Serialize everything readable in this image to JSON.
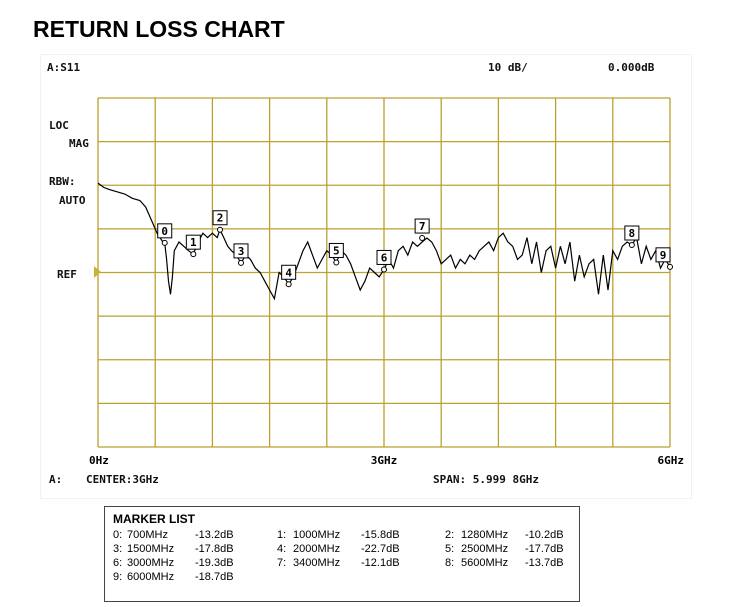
{
  "title": "RETURN LOSS CHART",
  "screen": {
    "trace_label": "A:S11",
    "scale": "10 dB/",
    "ref_value": "0.000dB",
    "format_line1": "LOC",
    "format_line2": "MAG",
    "rbw_line1": "RBW:",
    "rbw_line2": "AUTO",
    "ref_label": "REF",
    "channel_label": "A:",
    "center": "CENTER:3GHz",
    "span": "SPAN: 5.999 8GHz"
  },
  "colors": {
    "grid": "#b9a230",
    "trace": "#000000",
    "ref_arrow": "#c9b338"
  },
  "chart_data": {
    "type": "line",
    "title": "RETURN LOSS CHART",
    "xlabel": "",
    "ylabel": "",
    "x_unit": "MHz",
    "y_unit": "dB",
    "xlim": [
      0,
      6000
    ],
    "ylim": [
      -60,
      20
    ],
    "x_ticks": [
      0,
      3000,
      6000
    ],
    "x_tick_labels": [
      "0Hz",
      "3GHz",
      "6GHz"
    ],
    "grid": true,
    "grid_divisions": {
      "x": 10,
      "y": 8
    },
    "series": [
      {
        "x": [
          0,
          60,
          120,
          200,
          280,
          360,
          440,
          500,
          540,
          580,
          620,
          650,
          680,
          700,
          720,
          740,
          760,
          780,
          800,
          850,
          900,
          950,
          1000,
          1050,
          1100,
          1150,
          1200,
          1250,
          1280,
          1320,
          1360,
          1400,
          1450,
          1500,
          1550,
          1600,
          1650,
          1700,
          1750,
          1800,
          1850,
          1900,
          1950,
          2000,
          2050,
          2100,
          2150,
          2200,
          2250,
          2300,
          2350,
          2400,
          2450,
          2500,
          2550,
          2600,
          2650,
          2700,
          2750,
          2800,
          2850,
          2900,
          2950,
          3000,
          3050,
          3100,
          3150,
          3200,
          3250,
          3300,
          3350,
          3400,
          3450,
          3500,
          3550,
          3600,
          3650,
          3700,
          3750,
          3800,
          3850,
          3900,
          3950,
          4000,
          4050,
          4100,
          4150,
          4200,
          4250,
          4300,
          4350,
          4400,
          4450,
          4500,
          4550,
          4600,
          4650,
          4700,
          4750,
          4800,
          4850,
          4900,
          4950,
          5000,
          5050,
          5100,
          5150,
          5200,
          5250,
          5300,
          5350,
          5400,
          5450,
          5500,
          5550,
          5600,
          5650,
          5700,
          5750,
          5800,
          5850,
          5900,
          5950,
          6000
        ],
        "y": [
          0.5,
          -0.5,
          -1,
          -1.5,
          -2,
          -3,
          -3.5,
          -5,
          -7,
          -9,
          -11,
          -12,
          -13,
          -13.2,
          -17,
          -22,
          -25,
          -21,
          -15,
          -13,
          -14,
          -15,
          -15.8,
          -13,
          -11,
          -12,
          -11,
          -12,
          -10.2,
          -12,
          -14,
          -15,
          -16,
          -17.8,
          -16,
          -17,
          -19,
          -20,
          -22,
          -24,
          -26,
          -20,
          -21,
          -22.7,
          -21,
          -18,
          -15,
          -13,
          -16,
          -19,
          -17,
          -15,
          -16,
          -17.7,
          -15,
          -16,
          -18,
          -21,
          -24,
          -22,
          -19,
          -20,
          -21,
          -19.3,
          -17,
          -19,
          -15,
          -14,
          -16,
          -13,
          -14,
          -13,
          -12.1,
          -13,
          -15,
          -18,
          -17,
          -16,
          -19,
          -17,
          -18,
          -16,
          -17,
          -15,
          -14,
          -13,
          -15,
          -12,
          -11,
          -13,
          -14,
          -17,
          -16,
          -12,
          -18,
          -13,
          -20,
          -15,
          -14,
          -19,
          -14,
          -18,
          -13,
          -22,
          -16,
          -21,
          -18,
          -17,
          -25,
          -16,
          -24,
          -15,
          -17,
          -14,
          -13,
          -13.7,
          -12,
          -18,
          -14,
          -17,
          -15,
          -19,
          -17,
          -18.7
        ],
        "markers": [
          {
            "id": "0",
            "freq_mhz": 700,
            "value_db": -13.2
          },
          {
            "id": "1",
            "freq_mhz": 1000,
            "value_db": -15.8
          },
          {
            "id": "2",
            "freq_mhz": 1280,
            "value_db": -10.2
          },
          {
            "id": "3",
            "freq_mhz": 1500,
            "value_db": -17.8
          },
          {
            "id": "4",
            "freq_mhz": 2000,
            "value_db": -22.7
          },
          {
            "id": "5",
            "freq_mhz": 2500,
            "value_db": -17.7
          },
          {
            "id": "6",
            "freq_mhz": 3000,
            "value_db": -19.3
          },
          {
            "id": "7",
            "freq_mhz": 3400,
            "value_db": -12.1
          },
          {
            "id": "8",
            "freq_mhz": 5600,
            "value_db": -13.7
          },
          {
            "id": "9",
            "freq_mhz": 6000,
            "value_db": -18.7
          }
        ]
      }
    ]
  },
  "marker_list": {
    "title": "MARKER LIST",
    "entries": [
      {
        "idx": "0:",
        "freq": "700MHz",
        "val": "-13.2dB"
      },
      {
        "idx": "1:",
        "freq": "1000MHz",
        "val": "-15.8dB"
      },
      {
        "idx": "2:",
        "freq": "1280MHz",
        "val": "-10.2dB"
      },
      {
        "idx": "3:",
        "freq": "1500MHz",
        "val": "-17.8dB"
      },
      {
        "idx": "4:",
        "freq": "2000MHz",
        "val": "-22.7dB"
      },
      {
        "idx": "5:",
        "freq": "2500MHz",
        "val": "-17.7dB"
      },
      {
        "idx": "6:",
        "freq": "3000MHz",
        "val": "-19.3dB"
      },
      {
        "idx": "7:",
        "freq": "3400MHz",
        "val": "-12.1dB"
      },
      {
        "idx": "8:",
        "freq": "5600MHz",
        "val": "-13.7dB"
      },
      {
        "idx": "9:",
        "freq": "6000MHz",
        "val": "-18.7dB"
      }
    ]
  }
}
